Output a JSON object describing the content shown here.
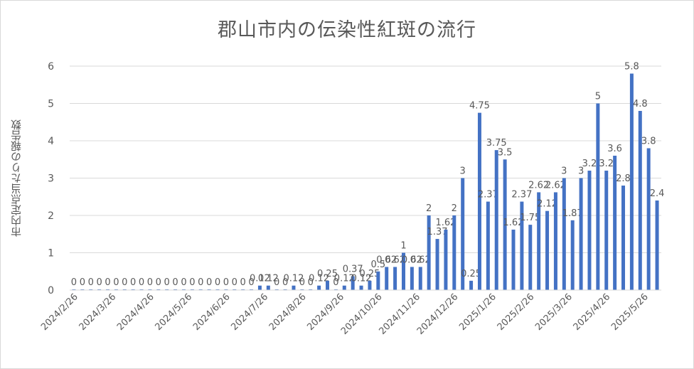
{
  "chart_data": {
    "type": "bar",
    "title": "郡山市内の伝染性紅斑の流行",
    "ylabel": "市内定点当たりの報告数",
    "xlabel": "",
    "ylim": [
      0,
      6
    ],
    "yticks": [
      "0",
      "1",
      "2",
      "3",
      "4",
      "5",
      "6"
    ],
    "grid": true,
    "legend": "none",
    "bar_color": "#4472c4",
    "xtick_labels": [
      "2024/2/26",
      "2024/3/26",
      "2024/4/26",
      "2024/5/26",
      "2024/6/26",
      "2024/7/26",
      "2024/8/26",
      "2024/9/26",
      "2024/10/26",
      "2024/11/26",
      "2024/12/26",
      "2025/1/26",
      "2025/2/26",
      "2025/3/26",
      "2025/4/26",
      "2025/5/26"
    ],
    "values": [
      0,
      0,
      0,
      0,
      0,
      0,
      0,
      0,
      0,
      0,
      0,
      0,
      0,
      0,
      0,
      0,
      0,
      0,
      0,
      0,
      0,
      0,
      0.12,
      0.12,
      0,
      0,
      0.12,
      0,
      0,
      0.12,
      0.25,
      0,
      0.12,
      0.37,
      0.12,
      0.25,
      0.5,
      0.62,
      0.62,
      1,
      0.62,
      0.62,
      2,
      1.37,
      1.62,
      2,
      3,
      0.25,
      4.75,
      2.37,
      3.75,
      3.5,
      1.62,
      2.37,
      1.75,
      2.62,
      2.12,
      2.62,
      3,
      1.87,
      3,
      3.2,
      5,
      3.2,
      3.6,
      2.8,
      5.8,
      4.8,
      3.8,
      2.4
    ],
    "data_labels": [
      "0",
      "0",
      "0",
      "0",
      "0",
      "0",
      "0",
      "0",
      "0",
      "0",
      "0",
      "0",
      "0",
      "0",
      "0",
      "0",
      "0",
      "0",
      "0",
      "0",
      "0",
      "0",
      "0.12",
      "0.12",
      "0",
      "0",
      "0.12",
      "0",
      "0",
      "0.12",
      "0.25",
      "0",
      "0.12",
      "0.37",
      "0.12",
      "0.25",
      "0.5",
      "0.62",
      "0.62",
      "1",
      "0.62",
      "0.62",
      "2",
      "1.37",
      "1.62",
      "2",
      "3",
      "0.25",
      "4.75",
      "2.37",
      "3.75",
      "3.5",
      "1.62",
      "2.37",
      "1.75",
      "2.62",
      "2.12",
      "2.62",
      "3",
      "1.87",
      "3",
      "3.2",
      "5",
      "3.2",
      "3.6",
      "2.8",
      "5.8",
      "4.8",
      "3.8",
      "2.4"
    ]
  }
}
